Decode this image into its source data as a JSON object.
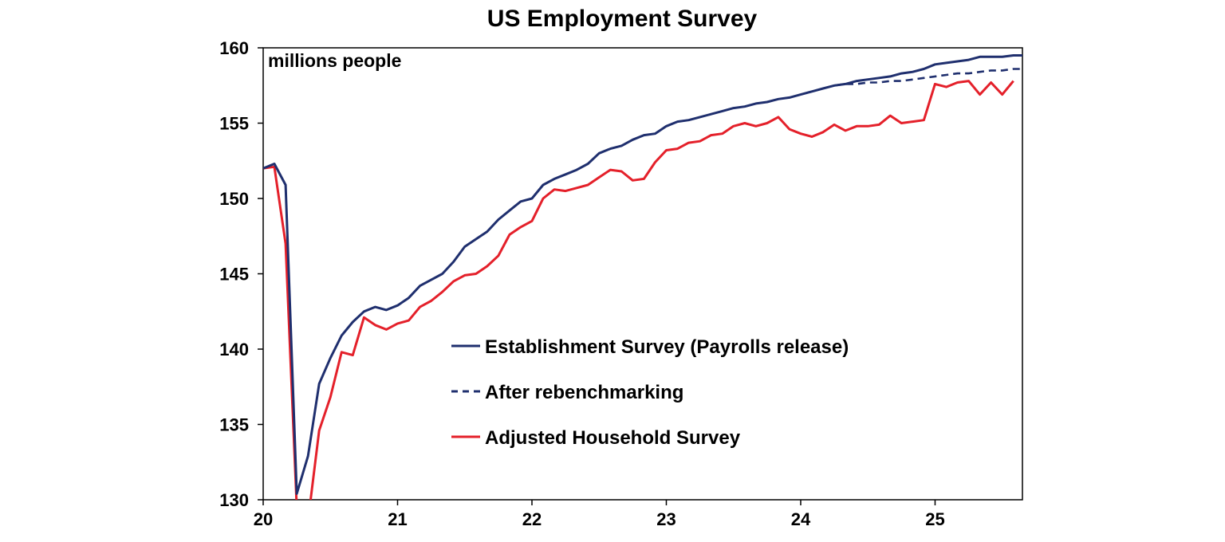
{
  "chart_data": {
    "type": "line",
    "title": "US Employment Survey",
    "unit_label": "millions people",
    "ylim": [
      130,
      160
    ],
    "xlim": [
      2020.0,
      2025.65
    ],
    "y_ticks": [
      "130",
      "135",
      "140",
      "145",
      "150",
      "155",
      "160"
    ],
    "x_ticks": [
      {
        "label": "20",
        "x": 2020
      },
      {
        "label": "21",
        "x": 2021
      },
      {
        "label": "22",
        "x": 2022
      },
      {
        "label": "23",
        "x": 2023
      },
      {
        "label": "24",
        "x": 2024
      },
      {
        "label": "25",
        "x": 2025
      }
    ],
    "legend_position": "center-right",
    "grid": false,
    "series": [
      {
        "name": "Establishment Survey (Payrolls release)",
        "color": "#1f2f6e",
        "dash": false,
        "start": 2020.0,
        "step": 0.08333,
        "values": [
          152.0,
          152.3,
          150.9,
          130.4,
          132.9,
          137.7,
          139.4,
          140.9,
          141.8,
          142.5,
          142.8,
          142.6,
          142.9,
          143.4,
          144.2,
          144.6,
          145.0,
          145.8,
          146.8,
          147.3,
          147.8,
          148.6,
          149.2,
          149.8,
          150.0,
          150.9,
          151.3,
          151.6,
          151.9,
          152.3,
          153.0,
          153.3,
          153.5,
          153.9,
          154.2,
          154.3,
          154.8,
          155.1,
          155.2,
          155.4,
          155.6,
          155.8,
          156.0,
          156.1,
          156.3,
          156.4,
          156.6,
          156.7,
          156.9,
          157.1,
          157.3,
          157.5,
          157.6,
          157.8,
          157.9,
          158.0,
          158.1,
          158.3,
          158.4,
          158.6,
          158.9,
          159.0,
          159.1,
          159.2,
          159.4,
          159.4,
          159.4,
          159.5,
          159.5
        ]
      },
      {
        "name": "After rebenchmarking",
        "color": "#1f2f6e",
        "dash": true,
        "start": 2024.25,
        "step": 0.08333,
        "values": [
          157.5,
          157.6,
          157.6,
          157.7,
          157.7,
          157.8,
          157.8,
          157.9,
          158.0,
          158.1,
          158.2,
          158.3,
          158.3,
          158.4,
          158.5,
          158.5,
          158.6,
          158.6
        ]
      },
      {
        "name": "Adjusted Household Survey",
        "color": "#e4202a",
        "dash": false,
        "start": 2020.0,
        "step": 0.08333,
        "values": [
          152.0,
          152.1,
          147.0,
          129.5,
          128.6,
          134.6,
          136.8,
          139.8,
          139.6,
          142.1,
          141.6,
          141.3,
          141.7,
          141.9,
          142.8,
          143.2,
          143.8,
          144.5,
          144.9,
          145.0,
          145.5,
          146.2,
          147.6,
          148.1,
          148.5,
          150.0,
          150.6,
          150.5,
          150.7,
          150.9,
          151.4,
          151.9,
          151.8,
          151.2,
          151.3,
          152.4,
          153.2,
          153.3,
          153.7,
          153.8,
          154.2,
          154.3,
          154.8,
          155.0,
          154.8,
          155.0,
          155.4,
          154.6,
          154.3,
          154.1,
          154.4,
          154.9,
          154.5,
          154.8,
          154.8,
          154.9,
          155.5,
          155.0,
          155.1,
          155.2,
          157.6,
          157.4,
          157.7,
          157.8,
          156.9,
          157.7,
          156.9,
          157.8
        ]
      }
    ]
  }
}
